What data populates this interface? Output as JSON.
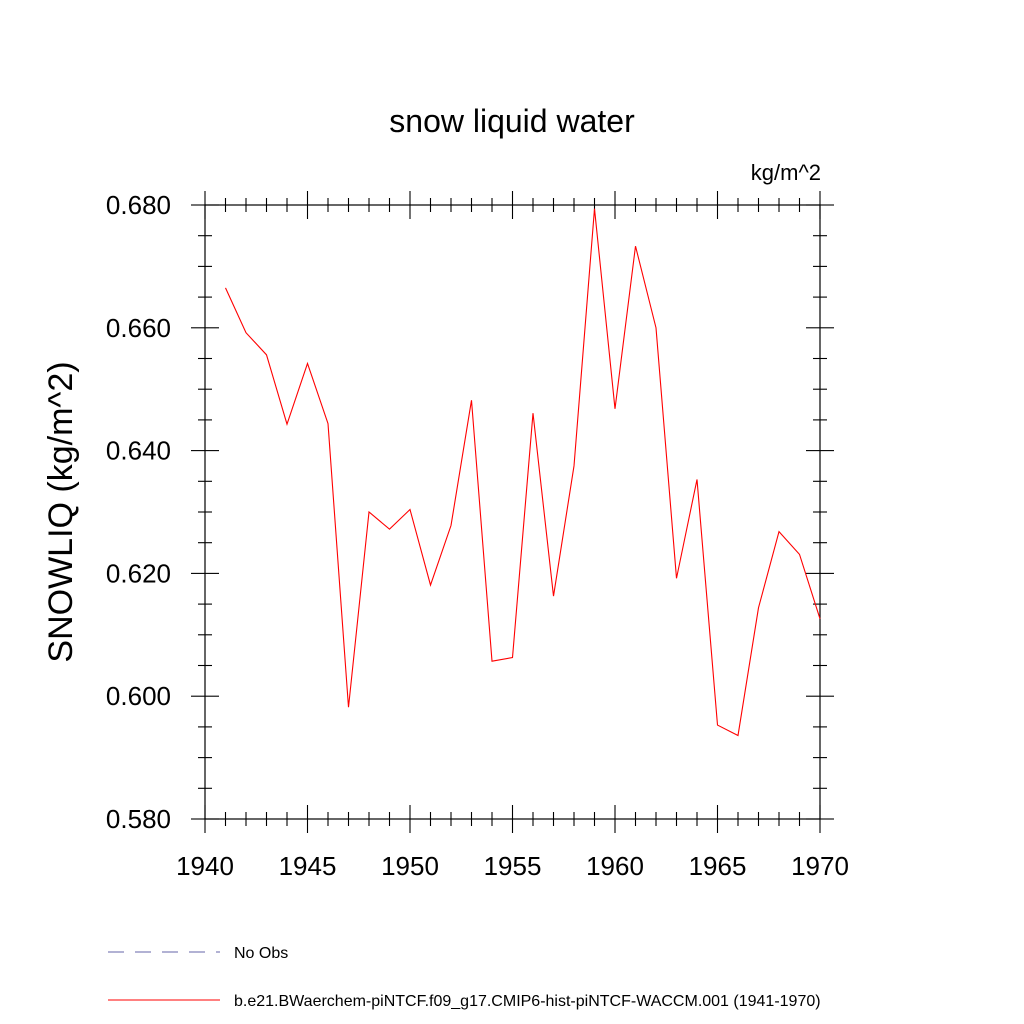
{
  "chart_data": {
    "type": "line",
    "title": "snow liquid water",
    "units": "kg/m^2",
    "xlabel": "",
    "ylabel": "SNOWLIQ  (kg/m^2)",
    "xlim": [
      1940,
      1970
    ],
    "ylim": [
      0.58,
      0.68
    ],
    "x_ticks": [
      "1940",
      "1945",
      "1950",
      "1955",
      "1960",
      "1965",
      "1970"
    ],
    "y_ticks": [
      "0.580",
      "0.600",
      "0.620",
      "0.640",
      "0.660",
      "0.680"
    ],
    "series": [
      {
        "name": "b.e21.BWaerchem-piNTCF.f09_g17.CMIP6-hist-piNTCF-WACCM.001 (1941-1970)",
        "color": "#ff0000",
        "x": [
          1941,
          1942,
          1943,
          1944,
          1945,
          1946,
          1947,
          1948,
          1949,
          1950,
          1951,
          1952,
          1953,
          1954,
          1955,
          1956,
          1957,
          1958,
          1959,
          1960,
          1961,
          1962,
          1963,
          1964,
          1965,
          1966,
          1967,
          1968,
          1969,
          1970
        ],
        "y": [
          0.6665,
          0.6592,
          0.6556,
          0.6443,
          0.6542,
          0.6444,
          0.5982,
          0.63,
          0.6272,
          0.6304,
          0.6181,
          0.6278,
          0.6482,
          0.6057,
          0.6063,
          0.6461,
          0.6163,
          0.6375,
          0.6794,
          0.6468,
          0.6733,
          0.66,
          0.6192,
          0.6353,
          0.5953,
          0.5936,
          0.6144,
          0.6268,
          0.6231,
          0.6126
        ]
      }
    ],
    "legend": [
      {
        "label": "No Obs",
        "color": "#6666aa",
        "style": "dashed"
      },
      {
        "label": "b.e21.BWaerchem-piNTCF.f09_g17.CMIP6-hist-piNTCF-WACCM.001 (1941-1970)",
        "color": "#ff0000",
        "style": "solid"
      }
    ],
    "legend_position": "bottom-left",
    "grid": false
  }
}
